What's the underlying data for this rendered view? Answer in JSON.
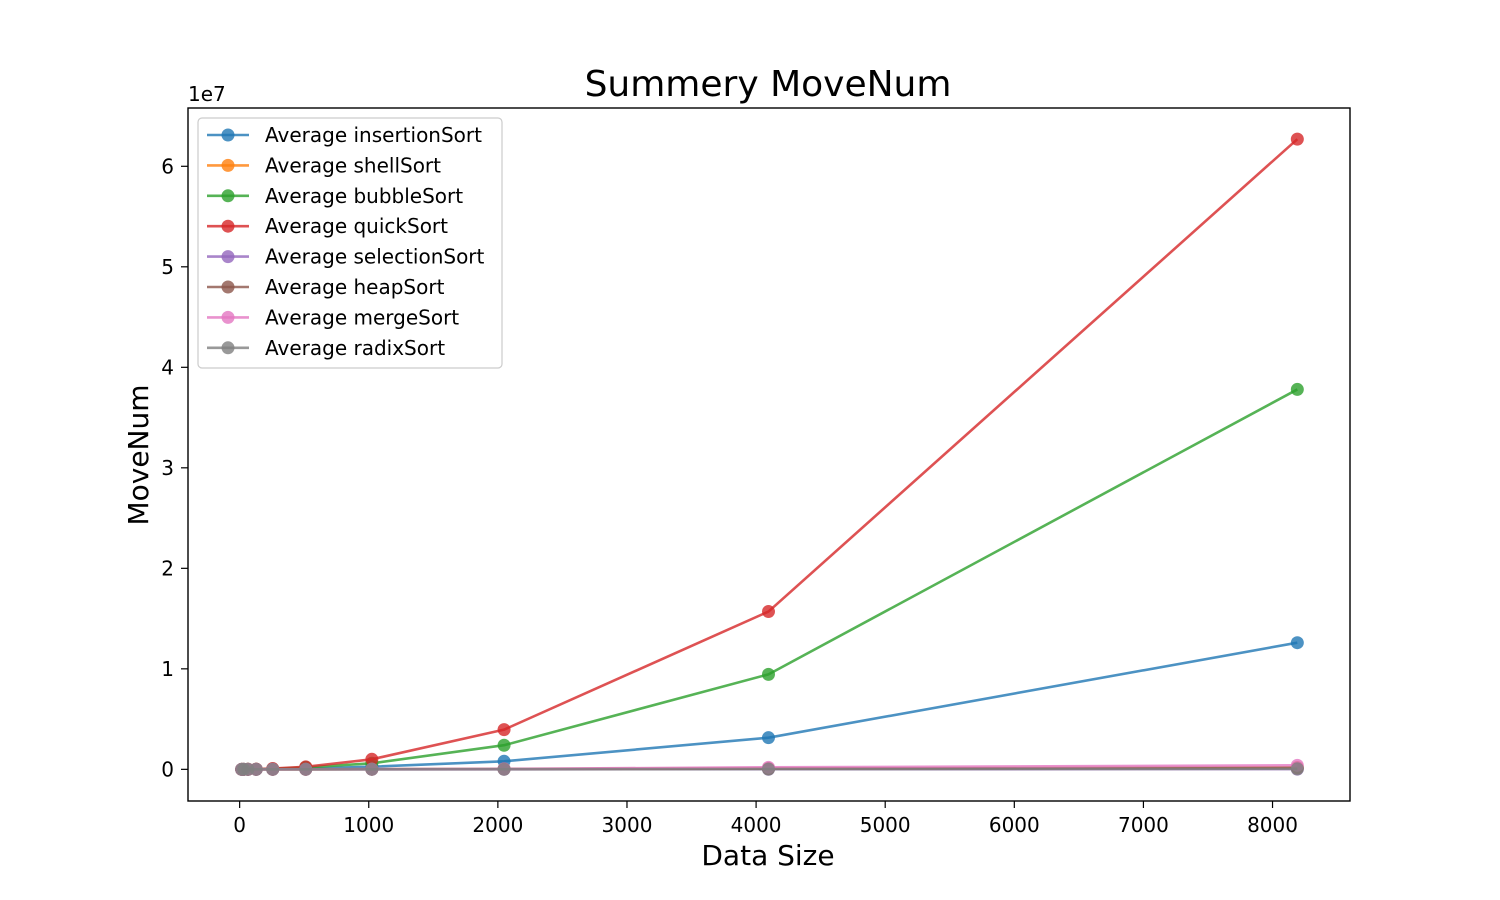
{
  "chart_data": {
    "type": "line",
    "title": "Summery MoveNum",
    "xlabel": "Data Size",
    "ylabel": "MoveNum",
    "y_offset_label": "1e7",
    "y_scale_factor": 10000000,
    "xlim": [
      -400,
      8600
    ],
    "ylim": [
      -3150000,
      65800000
    ],
    "x_ticks": [
      0,
      1000,
      2000,
      3000,
      4000,
      5000,
      6000,
      7000,
      8000
    ],
    "y_ticks": [
      0,
      1,
      2,
      3,
      4,
      5,
      6
    ],
    "grid": false,
    "legend_position": "top-left",
    "x": [
      16,
      32,
      64,
      128,
      256,
      512,
      1024,
      2048,
      4096,
      8192
    ],
    "series": [
      {
        "name": "Average insertionSort",
        "color": "#1f77b4",
        "values": [
          60,
          250,
          1000,
          4000,
          16000,
          65000,
          260000,
          800000,
          3150000,
          12600000
        ]
      },
      {
        "name": "Average shellSort",
        "color": "#ff7f0e",
        "values": [
          60,
          170,
          450,
          1100,
          2700,
          6400,
          15000,
          35000,
          80000,
          180000
        ]
      },
      {
        "name": "Average bubbleSort",
        "color": "#2ca02c",
        "values": [
          180,
          740,
          3000,
          12000,
          48000,
          190000,
          600000,
          2400000,
          9450000,
          37800000
        ]
      },
      {
        "name": "Average quickSort",
        "color": "#d62728",
        "values": [
          300,
          1200,
          5000,
          20000,
          80000,
          250000,
          1000000,
          3950000,
          15700000,
          62700000
        ]
      },
      {
        "name": "Average selectionSort",
        "color": "#9467bd",
        "values": [
          45,
          95,
          190,
          380,
          760,
          1530,
          3070,
          6140,
          12300,
          24600
        ]
      },
      {
        "name": "Average heapSort",
        "color": "#8c564b",
        "values": [
          90,
          220,
          520,
          1200,
          2800,
          6300,
          14000,
          31000,
          68000,
          148000
        ]
      },
      {
        "name": "Average mergeSort",
        "color": "#e377c2",
        "values": [
          130,
          320,
          770,
          1800,
          4100,
          9200,
          20500,
          45000,
          200000,
          400000
        ]
      },
      {
        "name": "Average radixSort",
        "color": "#7f7f7f",
        "values": [
          96,
          192,
          384,
          768,
          1536,
          3072,
          6144,
          12288,
          24576,
          49152
        ]
      }
    ]
  }
}
